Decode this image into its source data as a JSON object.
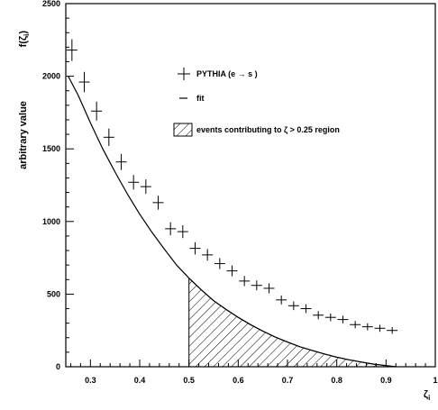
{
  "chart_data": {
    "type": "scatter",
    "ylabel": "arbitrary value",
    "ylabel_right": "f(ζ",
    "ylabel_right_sub": "i",
    "ylabel_right_close": ")",
    "xlabel": "ζ",
    "xlabel_sub": "i",
    "xlim": [
      0.25,
      1.0
    ],
    "ylim": [
      0,
      2500
    ],
    "x_ticks": [
      0.3,
      0.4,
      0.5,
      0.6,
      0.7,
      0.8,
      0.9,
      1.0
    ],
    "x_tick_labels": [
      "0.3",
      "0.4",
      "0.5",
      "0.6",
      "0.7",
      "0.8",
      "0.9",
      "1"
    ],
    "y_ticks": [
      0,
      500,
      1000,
      1500,
      2000,
      2500
    ],
    "y_tick_labels": [
      "0",
      "500",
      "1000",
      "1500",
      "2000",
      "2500"
    ],
    "grid": false,
    "legend": {
      "placement": "top-right",
      "entries": [
        {
          "label": "PYTHIA  (e → s )",
          "marker": "cross"
        },
        {
          "label": "fit",
          "marker": "line"
        },
        {
          "label": "events contributing to ζ >  0.25 region",
          "marker": "hatched-box"
        }
      ]
    },
    "series": [
      {
        "name": "PYTHIA  (e → s )",
        "x": [
          0.2625,
          0.2875,
          0.3125,
          0.3375,
          0.3625,
          0.3875,
          0.4125,
          0.4375,
          0.4625,
          0.4875,
          0.5125,
          0.5375,
          0.5625,
          0.5875,
          0.6125,
          0.6375,
          0.6625,
          0.6875,
          0.7125,
          0.7375,
          0.7625,
          0.7875,
          0.8125,
          0.8375,
          0.8625,
          0.8875,
          0.9125
        ],
        "y": [
          2180,
          1960,
          1760,
          1580,
          1410,
          1270,
          1240,
          1130,
          950,
          930,
          815,
          770,
          710,
          660,
          590,
          560,
          540,
          460,
          420,
          400,
          355,
          340,
          325,
          290,
          275,
          265,
          250
        ],
        "y_err": [
          75,
          70,
          65,
          60,
          55,
          50,
          50,
          48,
          45,
          44,
          42,
          40,
          38,
          37,
          35,
          34,
          34,
          31,
          30,
          30,
          28,
          27,
          26,
          25,
          24,
          24,
          23
        ]
      },
      {
        "name": "fit",
        "type": "line",
        "x": [
          0.255,
          0.275,
          0.3,
          0.325,
          0.35,
          0.375,
          0.4,
          0.425,
          0.45,
          0.475,
          0.5,
          0.525,
          0.55,
          0.575,
          0.6,
          0.625,
          0.65,
          0.675,
          0.7,
          0.725,
          0.75,
          0.775,
          0.8,
          0.825,
          0.85,
          0.875,
          0.9,
          0.92
        ],
        "y": [
          2000,
          1870,
          1680,
          1500,
          1340,
          1190,
          1050,
          925,
          810,
          700,
          610,
          530,
          455,
          395,
          340,
          290,
          245,
          205,
          170,
          138,
          112,
          88,
          66,
          48,
          32,
          18,
          8,
          0
        ]
      }
    ],
    "hatched_region": {
      "x_from": 0.5,
      "x_to": 0.92
    }
  }
}
